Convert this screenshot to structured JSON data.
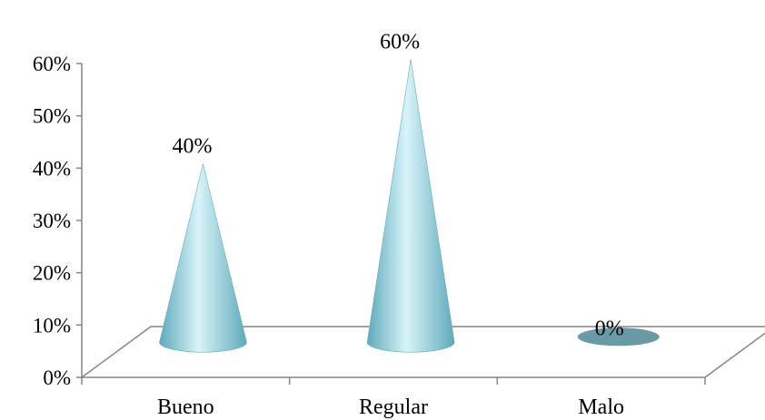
{
  "chart_data": {
    "type": "bar",
    "style": "3d-cone",
    "categories": [
      "Bueno",
      "Regular",
      "Malo"
    ],
    "values": [
      40,
      60,
      0
    ],
    "data_labels": [
      "40%",
      "60%",
      "0%"
    ],
    "ylim": [
      0,
      60
    ],
    "yticks": [
      0,
      10,
      20,
      30,
      40,
      50,
      60
    ],
    "ytick_labels": [
      "0%",
      "10%",
      "20%",
      "30%",
      "40%",
      "50%",
      "60%"
    ],
    "grid": false,
    "legend": "none",
    "title": "",
    "xlabel": "",
    "ylabel": "",
    "colors": {
      "cone": "#8fd3e3",
      "cone_light": "#d8f4fa",
      "cone_dark": "#5fa9ba",
      "base_ellipse": "#6a9aa5",
      "axis": "#868686"
    }
  }
}
